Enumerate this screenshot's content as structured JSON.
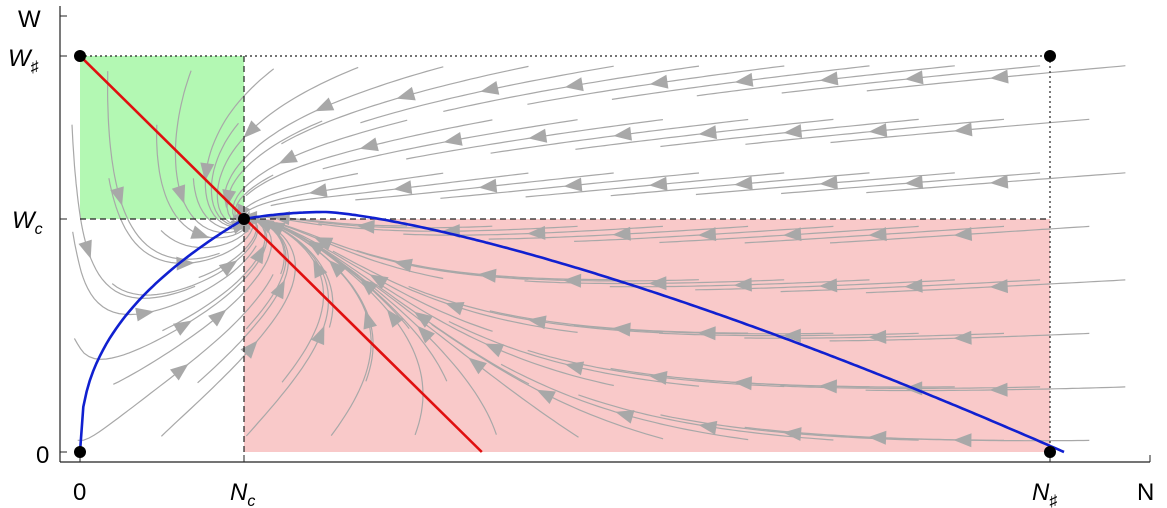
{
  "axes": {
    "x_label": "N",
    "y_label": "W",
    "x_ticks": [
      {
        "main": "0",
        "sub": ""
      },
      {
        "main": "N",
        "sub": "c"
      },
      {
        "main": "N",
        "sub": "♯"
      }
    ],
    "y_ticks": [
      {
        "main": "0",
        "sub": ""
      },
      {
        "main": "W",
        "sub": "c"
      },
      {
        "main": "W",
        "sub": "♯"
      }
    ]
  },
  "model": {
    "N_c": 1,
    "N_sharp": 6,
    "W_c": 1,
    "W_sharp": 1.7,
    "x_range": [
      -0.1,
      6.6
    ],
    "y_range": [
      -0.05,
      1.87
    ]
  },
  "regions": [
    {
      "name": "low-n-high-w",
      "color": "#b3f8b3"
    },
    {
      "name": "high-n-low-w",
      "color": "#f9c9c9"
    }
  ],
  "curves": {
    "nullcline_red": {
      "color": "#e01010",
      "end_x": 2.45
    },
    "nullcline_blue": {
      "color": "#1020d0",
      "peak_x": 1.5,
      "peak_y": 1.03
    }
  },
  "fixed_points": [
    {
      "name": "origin",
      "x": 0,
      "y": 0
    },
    {
      "name": "coexistence",
      "x": 1,
      "y": 1
    },
    {
      "name": "w-max",
      "x": 0,
      "y": 1.7
    },
    {
      "name": "n-max",
      "x": 6,
      "y": 0
    },
    {
      "name": "corner",
      "x": 6,
      "y": 1.7
    }
  ],
  "stream_color": "#a8a8a8"
}
